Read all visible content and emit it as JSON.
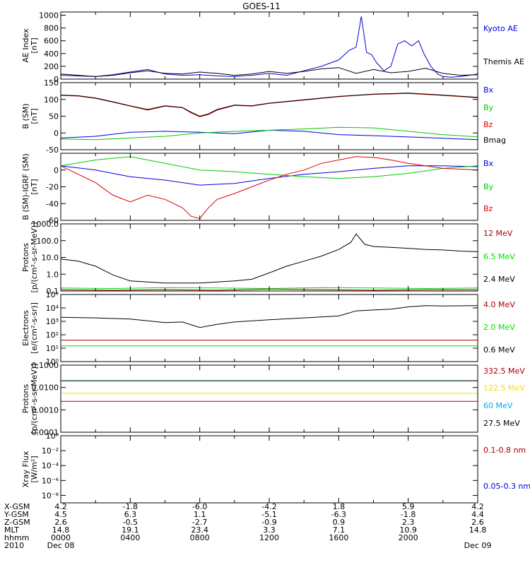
{
  "title": "GOES-11",
  "chart_data": [
    {
      "type": "line",
      "ylabel_lines": [
        "AE Index",
        "[nT]"
      ],
      "ylim": [
        0,
        1050
      ],
      "yscale": "linear",
      "yticks": [
        0,
        200,
        400,
        600,
        800,
        1000
      ],
      "ytick_labels": [
        "0",
        "200",
        "400",
        "600",
        "800",
        "1000"
      ],
      "series": [
        {
          "name": "Kyoto AE",
          "color": "#0000dd",
          "x": [
            0,
            1,
            2,
            3,
            4,
            5,
            6,
            7,
            8,
            9,
            10,
            11,
            12,
            13,
            14,
            15,
            16,
            16.6,
            17,
            17.3,
            17.6,
            17.9,
            18.2,
            18.6,
            19,
            19.4,
            19.8,
            20.2,
            20.6,
            20.9,
            21.3,
            21.7,
            22,
            22.5,
            23,
            23.5,
            24
          ],
          "values": [
            60,
            50,
            40,
            70,
            110,
            150,
            80,
            60,
            70,
            50,
            40,
            60,
            90,
            60,
            130,
            200,
            300,
            450,
            500,
            980,
            420,
            380,
            250,
            130,
            200,
            550,
            600,
            520,
            600,
            400,
            200,
            80,
            40,
            30,
            40,
            60,
            80
          ]
        },
        {
          "name": "Themis AE",
          "color": "#000000",
          "x": [
            0,
            1,
            2,
            3,
            4,
            5,
            6,
            7,
            8,
            9,
            10,
            11,
            12,
            13,
            14,
            15,
            16,
            17,
            18,
            19,
            20,
            21,
            22,
            23,
            24
          ],
          "values": [
            80,
            60,
            40,
            60,
            100,
            130,
            90,
            80,
            110,
            90,
            60,
            80,
            120,
            90,
            120,
            160,
            180,
            90,
            150,
            100,
            120,
            170,
            90,
            60,
            70
          ]
        }
      ]
    },
    {
      "type": "line",
      "ylabel_lines": [
        "B (SM)",
        "[nT]"
      ],
      "ylim": [
        -50,
        150
      ],
      "yscale": "linear",
      "yticks": [
        -50,
        0,
        50,
        100,
        150
      ],
      "ytick_labels": [
        "-50",
        "0",
        "50",
        "100",
        "150"
      ],
      "series": [
        {
          "name": "Bx",
          "color": "#0000dd",
          "x": [
            0,
            2,
            4,
            6,
            8,
            10,
            12,
            14,
            16,
            18,
            20,
            22,
            24
          ],
          "values": [
            -15,
            -10,
            2,
            5,
            2,
            -2,
            8,
            5,
            -5,
            -8,
            -12,
            -16,
            -20
          ]
        },
        {
          "name": "By",
          "color": "#00cc00",
          "x": [
            0,
            2,
            4,
            6,
            8,
            10,
            12,
            14,
            16,
            18,
            20,
            22,
            24
          ],
          "values": [
            -18,
            -20,
            -15,
            -10,
            0,
            5,
            8,
            12,
            17,
            15,
            5,
            -5,
            -12
          ]
        },
        {
          "name": "Bz",
          "color": "#dd0000",
          "x": [
            0,
            1,
            2,
            3,
            4,
            5,
            6,
            7,
            7.5,
            8,
            8.5,
            9,
            10,
            11,
            12,
            14,
            16,
            18,
            20,
            22,
            24
          ],
          "values": [
            112,
            110,
            103,
            92,
            80,
            68,
            80,
            75,
            60,
            48,
            55,
            68,
            82,
            80,
            88,
            98,
            108,
            115,
            118,
            112,
            105
          ]
        },
        {
          "name": "Bmag",
          "color": "#000000",
          "x": [
            0,
            1,
            2,
            3,
            4,
            5,
            6,
            7,
            7.5,
            8,
            8.5,
            9,
            10,
            11,
            12,
            14,
            16,
            18,
            20,
            22,
            24
          ],
          "values": [
            113,
            111,
            104,
            93,
            81,
            70,
            81,
            76,
            62,
            50,
            57,
            70,
            83,
            81,
            89,
            99,
            109,
            116,
            119,
            113,
            106
          ]
        }
      ]
    },
    {
      "type": "line",
      "ylabel_lines": [
        "B (SM)-IGRF (SM)",
        "[nT]"
      ],
      "ylim": [
        -60,
        20
      ],
      "yscale": "linear",
      "yticks": [
        -60,
        -40,
        -20,
        0
      ],
      "ytick_labels": [
        "-60",
        "-40",
        "-20",
        "0"
      ],
      "series": [
        {
          "name": "Bx",
          "color": "#0000dd",
          "x": [
            0,
            2,
            4,
            6,
            8,
            10,
            12,
            14,
            16,
            18,
            20,
            22,
            24
          ],
          "values": [
            5,
            0,
            -8,
            -12,
            -18,
            -16,
            -10,
            -5,
            -2,
            2,
            5,
            5,
            4
          ]
        },
        {
          "name": "By",
          "color": "#00cc00",
          "x": [
            0,
            2,
            4,
            6,
            8,
            10,
            12,
            14,
            16,
            18,
            20,
            22,
            24
          ],
          "values": [
            5,
            12,
            16,
            8,
            0,
            -2,
            -5,
            -8,
            -10,
            -8,
            -4,
            2,
            5
          ]
        },
        {
          "name": "Bz",
          "color": "#dd0000",
          "x": [
            0,
            1,
            2,
            3,
            4,
            5,
            6,
            7,
            7.5,
            8,
            8.5,
            9,
            10,
            11,
            12,
            13,
            14,
            15,
            16,
            17,
            18,
            19,
            20,
            22,
            24
          ],
          "values": [
            5,
            -5,
            -15,
            -30,
            -38,
            -30,
            -35,
            -45,
            -55,
            -58,
            -45,
            -35,
            -28,
            -20,
            -12,
            -5,
            0,
            8,
            12,
            16,
            15,
            12,
            8,
            2,
            0
          ]
        }
      ]
    },
    {
      "type": "line",
      "ylabel_lines": [
        "Protons",
        "[p/(cm²-s-sr-MeV)]"
      ],
      "ylim": [
        0.1,
        1000
      ],
      "yscale": "log",
      "yticks": [
        0.1,
        1,
        10,
        100,
        1000
      ],
      "ytick_labels": [
        "0.1",
        "1.0",
        "10.0",
        "100.0",
        "1000.0"
      ],
      "series": [
        {
          "name": "12 MeV",
          "color": "#aa0000",
          "x": [
            0,
            3,
            6,
            9,
            12,
            15,
            18,
            21,
            24
          ],
          "values": [
            0.12,
            0.11,
            0.12,
            0.11,
            0.13,
            0.12,
            0.11,
            0.12,
            0.12
          ]
        },
        {
          "name": "6.5 MeV",
          "color": "#00dd00",
          "x": [
            0,
            3,
            6,
            9,
            12,
            15,
            18,
            21,
            24
          ],
          "values": [
            0.15,
            0.14,
            0.16,
            0.15,
            0.14,
            0.16,
            0.15,
            0.14,
            0.15
          ]
        },
        {
          "name": "2.4 MeV",
          "color": "#000000",
          "x": [
            0,
            1,
            2,
            3,
            4,
            6,
            8,
            10,
            11,
            12,
            13,
            14,
            15,
            16,
            16.7,
            17,
            17.5,
            18,
            19,
            20,
            21,
            22,
            23,
            24
          ],
          "values": [
            8,
            6,
            3,
            0.9,
            0.4,
            0.3,
            0.3,
            0.4,
            0.5,
            1.2,
            3,
            6,
            12,
            30,
            80,
            250,
            60,
            45,
            40,
            35,
            30,
            28,
            24,
            22
          ]
        }
      ]
    },
    {
      "type": "line",
      "ylabel_lines": [
        "Electrons",
        "[e/(cm²-s-sr)]"
      ],
      "ylim": [
        1,
        100000
      ],
      "yscale": "log",
      "yticks": [
        1,
        10,
        100,
        1000,
        10000,
        100000
      ],
      "ytick_labels": [
        "10⁰",
        "10¹",
        "10²",
        "10³",
        "10⁴",
        "10⁵"
      ],
      "series": [
        {
          "name": "4.0 MeV",
          "color": "#aa0000",
          "x": [
            0,
            6,
            12,
            18,
            24
          ],
          "values": [
            40,
            40,
            40,
            40,
            40
          ]
        },
        {
          "name": "2.0 MeV",
          "color": "#00dd00",
          "x": [
            0,
            6,
            12,
            18,
            24
          ],
          "values": [
            15,
            15,
            15,
            15,
            15
          ]
        },
        {
          "name": "0.6 MeV",
          "color": "#000000",
          "x": [
            0,
            2,
            4,
            6,
            7,
            8,
            9,
            10,
            12,
            14,
            16,
            17,
            18,
            19,
            20,
            21,
            22,
            24
          ],
          "values": [
            2000,
            1800,
            1500,
            800,
            900,
            350,
            600,
            900,
            1300,
            1800,
            2500,
            6000,
            7000,
            8000,
            12000,
            15000,
            14000,
            15000
          ]
        }
      ]
    },
    {
      "type": "line",
      "ylabel_lines": [
        "Protons",
        "[p/(cm²-s-sr-MeV)]"
      ],
      "ylim": [
        0.0001,
        0.1
      ],
      "yscale": "log",
      "yticks": [
        0.0001,
        0.001,
        0.01,
        0.1
      ],
      "ytick_labels": [
        "0.0001",
        "0.0010",
        "0.0100",
        "0.1000"
      ],
      "series": [
        {
          "name": "332.5 MeV",
          "color": "#aa0000",
          "x": [
            0,
            6,
            12,
            18,
            24
          ],
          "values": [
            0.0024,
            0.0024,
            0.0024,
            0.0024,
            0.0024
          ]
        },
        {
          "name": "122.5 MeV",
          "color": "#ffdd00",
          "x": [
            0,
            6,
            12,
            18,
            24
          ],
          "values": [
            0.0055,
            0.0055,
            0.0055,
            0.0055,
            0.0055
          ]
        },
        {
          "name": "60 MeV",
          "color": "#00aaee",
          "x": [
            0,
            6,
            12,
            18,
            24
          ],
          "values": [
            0.02,
            0.02,
            0.02,
            0.02,
            0.02
          ]
        },
        {
          "name": "27.5 MeV",
          "color": "#000000",
          "x": [
            0,
            6,
            12,
            18,
            24
          ],
          "values": [
            0.02,
            0.02,
            0.02,
            0.02,
            0.02
          ]
        }
      ]
    },
    {
      "type": "line",
      "ylabel_lines": [
        "Xray Flux",
        "[W/m²]"
      ],
      "ylim": [
        1e-09,
        1
      ],
      "yscale": "log",
      "yticks": [
        1e-08,
        1e-06,
        0.0001,
        0.01,
        1
      ],
      "ytick_labels": [
        "10⁻⁸",
        "10⁻⁶",
        "10⁻⁴",
        "10⁻²",
        "10⁰"
      ],
      "series": [
        {
          "name": "0.1-0.8 nm",
          "color": "#aa0000",
          "x": [],
          "values": []
        },
        {
          "name": "0.05-0.3 nm",
          "color": "#0000dd",
          "x": [],
          "values": []
        }
      ]
    }
  ],
  "xaxis": {
    "xlim": [
      0,
      24
    ],
    "row_labels": [
      "X-GSM",
      "Y-GSM",
      "Z-GSM",
      "MLT",
      "hhmm",
      "2010"
    ],
    "columns": [
      {
        "x": 0,
        "values": [
          "4.2",
          "4.5",
          "2.6",
          "14.8",
          "0000",
          "Dec 08"
        ]
      },
      {
        "x": 4,
        "values": [
          "-1.8",
          "6.3",
          "-0.5",
          "19.1",
          "0400",
          ""
        ]
      },
      {
        "x": 8,
        "values": [
          "-6.0",
          "1.1",
          "-2.7",
          "23.4",
          "0800",
          ""
        ]
      },
      {
        "x": 12,
        "values": [
          "-4.2",
          "-5.1",
          "-0.9",
          "3.3",
          "1200",
          ""
        ]
      },
      {
        "x": 16,
        "values": [
          "1.8",
          "-6.3",
          "0.9",
          "7.1",
          "1600",
          ""
        ]
      },
      {
        "x": 20,
        "values": [
          "5.9",
          "-1.8",
          "2.3",
          "10.9",
          "2000",
          ""
        ]
      },
      {
        "x": 24,
        "values": [
          "4.2",
          "4.4",
          "2.6",
          "14.8",
          "",
          "Dec 09"
        ]
      }
    ]
  }
}
